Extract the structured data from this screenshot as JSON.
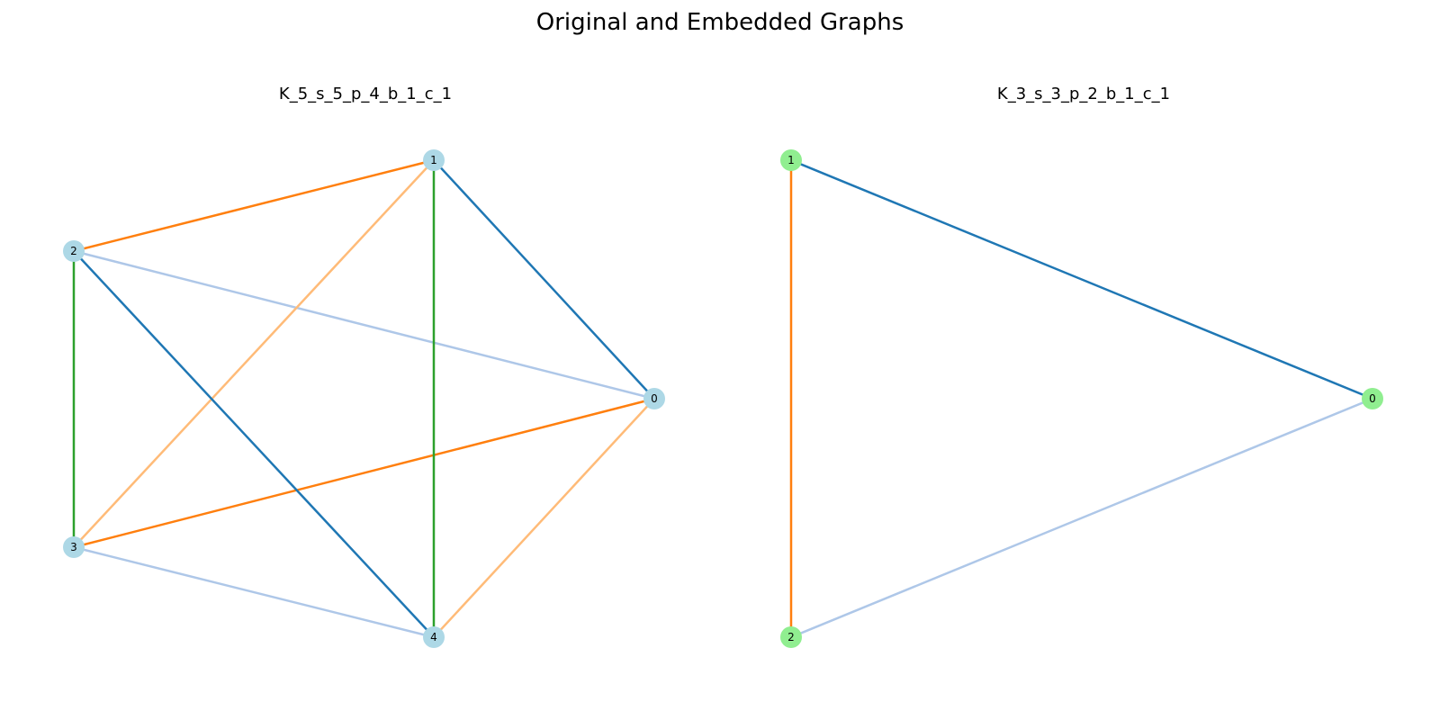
{
  "figure": {
    "title": "Original and Embedded Graphs"
  },
  "graphs": [
    {
      "title": "K_5_s_5_p_4_b_1_c_1",
      "node_color": "#add8e6",
      "nodes": [
        "0",
        "1",
        "2",
        "3",
        "4"
      ],
      "edges": [
        {
          "source": "0",
          "target": "1",
          "color": "#1f77b4"
        },
        {
          "source": "0",
          "target": "2",
          "color": "#aec7e8"
        },
        {
          "source": "0",
          "target": "3",
          "color": "#ff7f0e"
        },
        {
          "source": "0",
          "target": "4",
          "color": "#ffbb78"
        },
        {
          "source": "1",
          "target": "2",
          "color": "#ff7f0e"
        },
        {
          "source": "1",
          "target": "3",
          "color": "#ffbb78"
        },
        {
          "source": "1",
          "target": "4",
          "color": "#2ca02c"
        },
        {
          "source": "2",
          "target": "3",
          "color": "#2ca02c"
        },
        {
          "source": "2",
          "target": "4",
          "color": "#1f77b4"
        },
        {
          "source": "3",
          "target": "4",
          "color": "#aec7e8"
        }
      ]
    },
    {
      "title": "K_3_s_3_p_2_b_1_c_1",
      "node_color": "#90ee90",
      "nodes": [
        "0",
        "1",
        "2"
      ],
      "edges": [
        {
          "source": "0",
          "target": "1",
          "color": "#1f77b4"
        },
        {
          "source": "0",
          "target": "2",
          "color": "#aec7e8"
        },
        {
          "source": "1",
          "target": "2",
          "color": "#ff7f0e"
        }
      ]
    }
  ]
}
